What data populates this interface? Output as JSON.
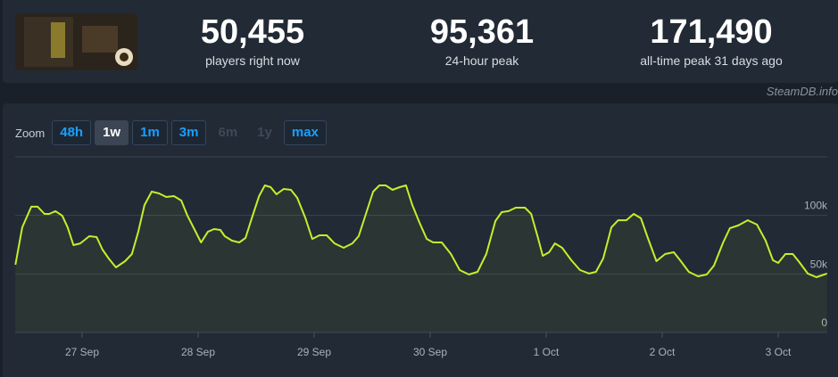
{
  "stats": [
    {
      "value": "50,455",
      "label": "players right now"
    },
    {
      "value": "95,361",
      "label": "24-hour peak"
    },
    {
      "value": "171,490",
      "label": "all-time peak 31 days ago"
    }
  ],
  "watermark": "SteamDB.info",
  "zoom": {
    "label": "Zoom",
    "buttons": [
      "48h",
      "1w",
      "1m",
      "3m",
      "6m",
      "1y",
      "max"
    ],
    "active": 1,
    "disabled": [
      4,
      5
    ]
  },
  "chart_data": {
    "type": "line",
    "color": "#c2f02c",
    "grid": true,
    "xlim": [
      -13.85,
      154.15
    ],
    "xticks": [
      {
        "value": 0,
        "label": "27 Sep"
      },
      {
        "value": 24,
        "label": "28 Sep"
      },
      {
        "value": 48,
        "label": "29 Sep"
      },
      {
        "value": 72,
        "label": "30 Sep"
      },
      {
        "value": 96,
        "label": "1 Oct"
      },
      {
        "value": 120,
        "label": "2 Oct"
      },
      {
        "value": 144,
        "label": "3 Oct"
      }
    ],
    "ylim": [
      0,
      150000
    ],
    "yticks": [
      0,
      {
        "value": 50000,
        "label": "50k"
      },
      {
        "value": 100000,
        "label": "100k"
      }
    ],
    "x": [
      -13.8,
      -12.4,
      -10.5,
      -9.2,
      -7.8,
      -6.8,
      -5.5,
      -4.1,
      -3.0,
      -1.8,
      -0.4,
      1.5,
      3.0,
      4.2,
      5.5,
      7.0,
      8.9,
      10.3,
      11.6,
      12.9,
      14.4,
      15.9,
      17.4,
      19.0,
      20.5,
      21.8,
      23.3,
      24.6,
      26.0,
      27.3,
      28.6,
      29.5,
      31.0,
      32.5,
      33.8,
      35.1,
      36.6,
      37.8,
      39.0,
      40.2,
      41.7,
      43.2,
      44.5,
      46.2,
      47.6,
      49.1,
      50.6,
      52.2,
      54.1,
      55.9,
      57.2,
      58.7,
      60.2,
      61.5,
      62.8,
      64.2,
      65.7,
      67.0,
      68.3,
      69.8,
      71.3,
      72.6,
      74.4,
      76.3,
      78.1,
      80.0,
      81.8,
      83.6,
      85.5,
      86.8,
      88.2,
      89.7,
      91.6,
      92.9,
      94.2,
      95.3,
      96.6,
      97.8,
      99.3,
      101.2,
      103.0,
      104.9,
      106.3,
      107.8,
      109.5,
      110.9,
      112.6,
      114.1,
      115.6,
      116.9,
      118.8,
      120.6,
      122.4,
      123.7,
      125.5,
      127.4,
      129.2,
      130.7,
      132.6,
      134.0,
      135.7,
      137.7,
      139.6,
      141.4,
      142.9,
      144.0,
      145.5,
      147.0,
      148.2,
      150.1,
      151.9,
      154.1
    ],
    "values": [
      57900,
      89800,
      107400,
      107400,
      101300,
      101300,
      103600,
      99700,
      89800,
      74600,
      76100,
      82200,
      81500,
      70800,
      63200,
      55600,
      60900,
      67000,
      86000,
      108900,
      120300,
      118800,
      115700,
      116500,
      112700,
      99700,
      87600,
      76900,
      86000,
      88300,
      87600,
      82200,
      78400,
      76900,
      80700,
      97500,
      116500,
      125600,
      124100,
      118000,
      122600,
      121800,
      115000,
      97500,
      79900,
      83000,
      83000,
      76100,
      72300,
      76100,
      82200,
      101300,
      120300,
      125600,
      125600,
      121800,
      124100,
      125600,
      108900,
      93700,
      79900,
      76900,
      76900,
      67000,
      53300,
      49500,
      51800,
      67000,
      95200,
      102800,
      103600,
      106600,
      106600,
      101300,
      82200,
      65500,
      68500,
      76100,
      72300,
      61700,
      53300,
      50300,
      51800,
      63200,
      89800,
      95900,
      95900,
      101300,
      97500,
      82200,
      60900,
      67000,
      68500,
      61700,
      51800,
      48000,
      49500,
      57100,
      76900,
      89100,
      91400,
      95900,
      92100,
      78400,
      61700,
      59400,
      67000,
      67000,
      60900,
      50300,
      47200,
      50300
    ]
  }
}
